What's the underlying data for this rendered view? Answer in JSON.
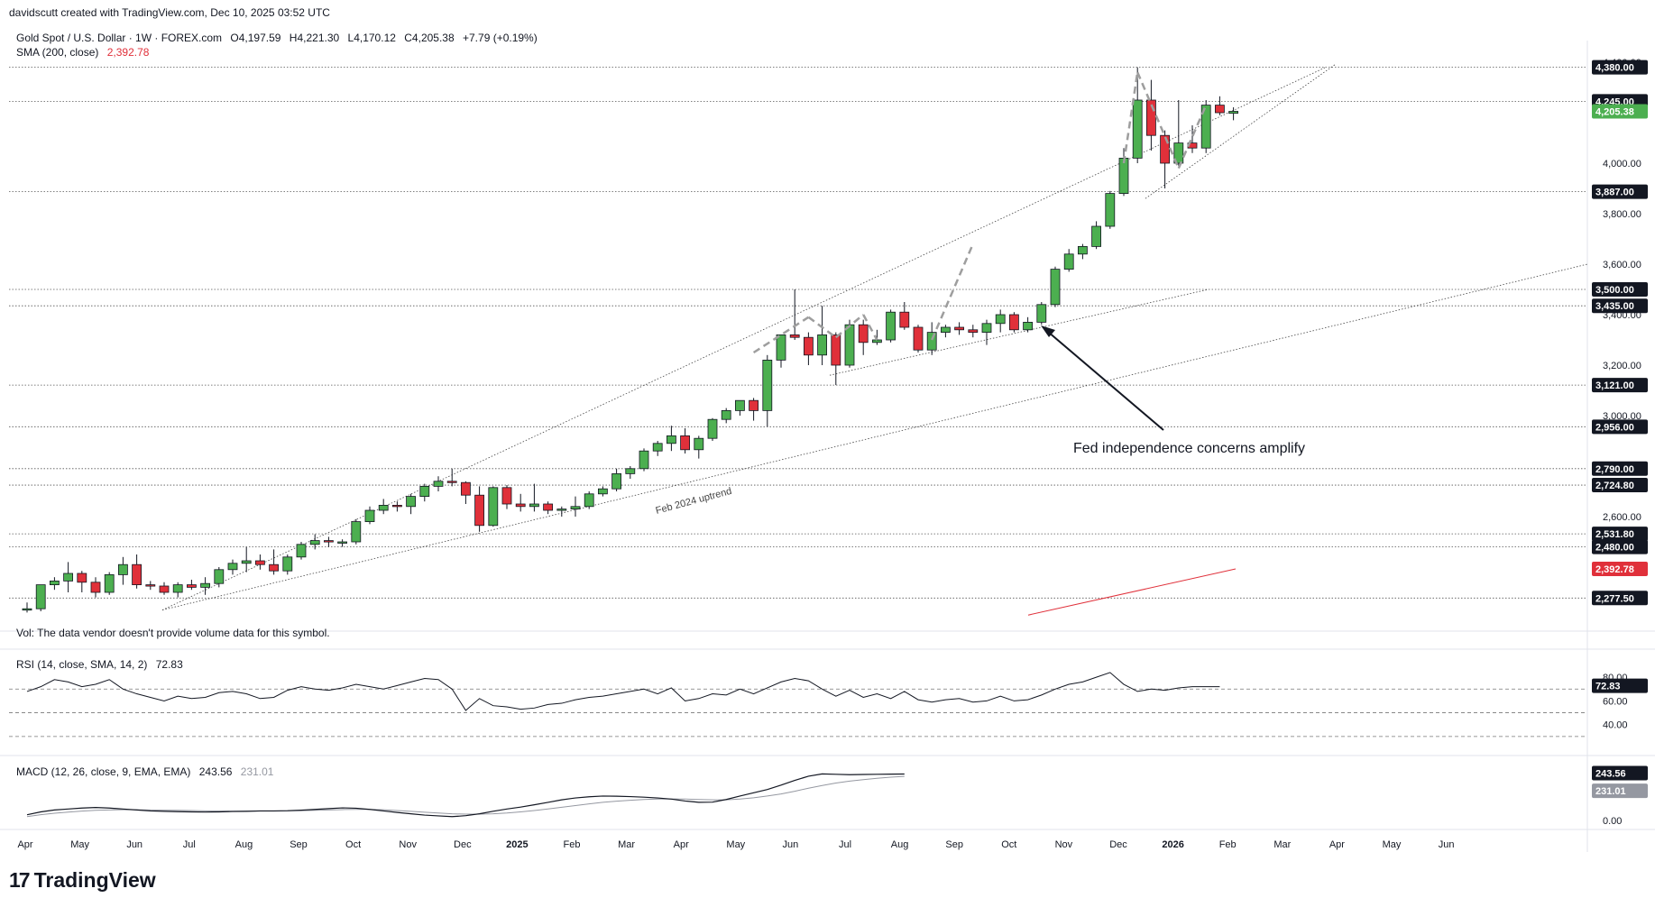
{
  "credit": "davidscutt created with TradingView.com, Dec 10, 2025 03:52 UTC",
  "symbol_line": {
    "title": "Gold Spot / U.S. Dollar · 1W · FOREX.com",
    "open": "O4,197.59",
    "high": "H4,221.30",
    "low": "L4,170.12",
    "close": "C4,205.38",
    "change": "+7.79 (+0.19%)"
  },
  "sma": {
    "label": "SMA (200, close)",
    "value": "2,392.78"
  },
  "vol_note": "Vol: The data vendor doesn't provide volume data for this symbol.",
  "rsi": {
    "label": "RSI (14, close, SMA, 14, 2)",
    "value": "72.83"
  },
  "macd": {
    "label": "MACD (12, 26, close, 9, EMA, EMA)",
    "value": "243.56",
    "signal": "231.01"
  },
  "brand": "TradingView",
  "colors": {
    "up": "#4caf50",
    "down": "#e0303a",
    "sma": "#e0303a",
    "axis_text": "#131722",
    "grid": "#9598a1"
  },
  "chart_data": {
    "type": "candlestick",
    "timeframe": "1W",
    "price_axis": {
      "range": [
        2200,
        4450
      ],
      "ticks": [
        2600,
        2800,
        3000,
        3200,
        3400,
        3600,
        3800,
        4000,
        4200,
        4400
      ],
      "tick_labels": [
        "2,600.00",
        "2,800.00",
        "3,000.00",
        "3,200.00",
        "3,400.00",
        "3,600.00",
        "3,800.00",
        "4,000.00",
        "4,200.00",
        "4,400.00"
      ]
    },
    "time_labels": [
      "Apr",
      "May",
      "Jun",
      "Jul",
      "Aug",
      "Sep",
      "Oct",
      "Nov",
      "Dec",
      "2025",
      "Feb",
      "Mar",
      "Apr",
      "May",
      "Jun",
      "Jul",
      "Aug",
      "Sep",
      "Oct",
      "Nov",
      "Dec",
      "2026",
      "Feb",
      "Mar",
      "Apr",
      "May",
      "Jun"
    ],
    "price_levels": [
      "4,380.00",
      "4,245.00",
      "3,887.00",
      "3,500.00",
      "3,435.00",
      "3,121.00",
      "2,956.00",
      "2,790.00",
      "2,724.80",
      "2,531.80",
      "2,480.00",
      "2,277.50"
    ],
    "last_price": "4,205.38",
    "candles": [
      {
        "o": 2230,
        "h": 2260,
        "l": 2220,
        "c": 2235
      },
      {
        "o": 2235,
        "h": 2330,
        "l": 2225,
        "c": 2330
      },
      {
        "o": 2330,
        "h": 2360,
        "l": 2310,
        "c": 2345
      },
      {
        "o": 2345,
        "h": 2420,
        "l": 2300,
        "c": 2375
      },
      {
        "o": 2375,
        "h": 2385,
        "l": 2300,
        "c": 2340
      },
      {
        "o": 2340,
        "h": 2360,
        "l": 2280,
        "c": 2300
      },
      {
        "o": 2300,
        "h": 2380,
        "l": 2290,
        "c": 2370
      },
      {
        "o": 2370,
        "h": 2440,
        "l": 2330,
        "c": 2410
      },
      {
        "o": 2410,
        "h": 2450,
        "l": 2315,
        "c": 2330
      },
      {
        "o": 2330,
        "h": 2345,
        "l": 2310,
        "c": 2325
      },
      {
        "o": 2325,
        "h": 2340,
        "l": 2290,
        "c": 2300
      },
      {
        "o": 2300,
        "h": 2340,
        "l": 2280,
        "c": 2330
      },
      {
        "o": 2330,
        "h": 2350,
        "l": 2310,
        "c": 2320
      },
      {
        "o": 2320,
        "h": 2360,
        "l": 2290,
        "c": 2335
      },
      {
        "o": 2335,
        "h": 2400,
        "l": 2320,
        "c": 2390
      },
      {
        "o": 2390,
        "h": 2430,
        "l": 2370,
        "c": 2415
      },
      {
        "o": 2415,
        "h": 2480,
        "l": 2380,
        "c": 2425
      },
      {
        "o": 2425,
        "h": 2450,
        "l": 2390,
        "c": 2410
      },
      {
        "o": 2410,
        "h": 2470,
        "l": 2370,
        "c": 2385
      },
      {
        "o": 2385,
        "h": 2450,
        "l": 2370,
        "c": 2440
      },
      {
        "o": 2440,
        "h": 2500,
        "l": 2430,
        "c": 2490
      },
      {
        "o": 2490,
        "h": 2530,
        "l": 2470,
        "c": 2505
      },
      {
        "o": 2505,
        "h": 2520,
        "l": 2480,
        "c": 2500
      },
      {
        "o": 2500,
        "h": 2510,
        "l": 2480,
        "c": 2500
      },
      {
        "o": 2500,
        "h": 2590,
        "l": 2490,
        "c": 2580
      },
      {
        "o": 2580,
        "h": 2640,
        "l": 2570,
        "c": 2625
      },
      {
        "o": 2625,
        "h": 2670,
        "l": 2610,
        "c": 2645
      },
      {
        "o": 2645,
        "h": 2660,
        "l": 2620,
        "c": 2640
      },
      {
        "o": 2640,
        "h": 2690,
        "l": 2610,
        "c": 2680
      },
      {
        "o": 2680,
        "h": 2730,
        "l": 2660,
        "c": 2720
      },
      {
        "o": 2720,
        "h": 2760,
        "l": 2700,
        "c": 2740
      },
      {
        "o": 2740,
        "h": 2790,
        "l": 2720,
        "c": 2735
      },
      {
        "o": 2735,
        "h": 2740,
        "l": 2650,
        "c": 2685
      },
      {
        "o": 2685,
        "h": 2720,
        "l": 2540,
        "c": 2565
      },
      {
        "o": 2565,
        "h": 2720,
        "l": 2560,
        "c": 2715
      },
      {
        "o": 2715,
        "h": 2725,
        "l": 2630,
        "c": 2650
      },
      {
        "o": 2650,
        "h": 2690,
        "l": 2620,
        "c": 2640
      },
      {
        "o": 2640,
        "h": 2730,
        "l": 2620,
        "c": 2650
      },
      {
        "o": 2650,
        "h": 2660,
        "l": 2610,
        "c": 2625
      },
      {
        "o": 2625,
        "h": 2640,
        "l": 2600,
        "c": 2630
      },
      {
        "o": 2630,
        "h": 2680,
        "l": 2600,
        "c": 2640
      },
      {
        "o": 2640,
        "h": 2700,
        "l": 2630,
        "c": 2690
      },
      {
        "o": 2690,
        "h": 2720,
        "l": 2680,
        "c": 2710
      },
      {
        "o": 2710,
        "h": 2790,
        "l": 2700,
        "c": 2770
      },
      {
        "o": 2770,
        "h": 2800,
        "l": 2750,
        "c": 2790
      },
      {
        "o": 2790,
        "h": 2870,
        "l": 2780,
        "c": 2860
      },
      {
        "o": 2860,
        "h": 2900,
        "l": 2840,
        "c": 2890
      },
      {
        "o": 2890,
        "h": 2960,
        "l": 2860,
        "c": 2920
      },
      {
        "o": 2920,
        "h": 2950,
        "l": 2850,
        "c": 2865
      },
      {
        "o": 2865,
        "h": 2920,
        "l": 2830,
        "c": 2910
      },
      {
        "o": 2910,
        "h": 2990,
        "l": 2900,
        "c": 2985
      },
      {
        "o": 2985,
        "h": 3030,
        "l": 2970,
        "c": 3020
      },
      {
        "o": 3020,
        "h": 3060,
        "l": 3000,
        "c": 3060
      },
      {
        "o": 3060,
        "h": 3070,
        "l": 2980,
        "c": 3020
      },
      {
        "o": 3020,
        "h": 3240,
        "l": 2956,
        "c": 3220
      },
      {
        "o": 3220,
        "h": 3320,
        "l": 3190,
        "c": 3320
      },
      {
        "o": 3320,
        "h": 3500,
        "l": 3300,
        "c": 3310
      },
      {
        "o": 3310,
        "h": 3330,
        "l": 3200,
        "c": 3240
      },
      {
        "o": 3240,
        "h": 3435,
        "l": 3200,
        "c": 3320
      },
      {
        "o": 3320,
        "h": 3330,
        "l": 3121,
        "c": 3200
      },
      {
        "o": 3200,
        "h": 3380,
        "l": 3190,
        "c": 3360
      },
      {
        "o": 3360,
        "h": 3380,
        "l": 3240,
        "c": 3290
      },
      {
        "o": 3290,
        "h": 3340,
        "l": 3280,
        "c": 3300
      },
      {
        "o": 3300,
        "h": 3420,
        "l": 3290,
        "c": 3410
      },
      {
        "o": 3410,
        "h": 3450,
        "l": 3340,
        "c": 3350
      },
      {
        "o": 3350,
        "h": 3360,
        "l": 3250,
        "c": 3260
      },
      {
        "o": 3260,
        "h": 3370,
        "l": 3240,
        "c": 3330
      },
      {
        "o": 3330,
        "h": 3360,
        "l": 3310,
        "c": 3350
      },
      {
        "o": 3350,
        "h": 3370,
        "l": 3320,
        "c": 3340
      },
      {
        "o": 3340,
        "h": 3360,
        "l": 3310,
        "c": 3330
      },
      {
        "o": 3330,
        "h": 3380,
        "l": 3280,
        "c": 3365
      },
      {
        "o": 3365,
        "h": 3420,
        "l": 3330,
        "c": 3400
      },
      {
        "o": 3400,
        "h": 3410,
        "l": 3330,
        "c": 3340
      },
      {
        "o": 3340,
        "h": 3390,
        "l": 3330,
        "c": 3370
      },
      {
        "o": 3370,
        "h": 3450,
        "l": 3360,
        "c": 3440
      },
      {
        "o": 3440,
        "h": 3590,
        "l": 3430,
        "c": 3580
      },
      {
        "o": 3580,
        "h": 3660,
        "l": 3570,
        "c": 3640
      },
      {
        "o": 3640,
        "h": 3680,
        "l": 3620,
        "c": 3670
      },
      {
        "o": 3670,
        "h": 3770,
        "l": 3660,
        "c": 3750
      },
      {
        "o": 3750,
        "h": 3890,
        "l": 3740,
        "c": 3880
      },
      {
        "o": 3880,
        "h": 4060,
        "l": 3870,
        "c": 4020
      },
      {
        "o": 4020,
        "h": 4380,
        "l": 4000,
        "c": 4250
      },
      {
        "o": 4250,
        "h": 4330,
        "l": 4050,
        "c": 4110
      },
      {
        "o": 4110,
        "h": 4130,
        "l": 3900,
        "c": 4000
      },
      {
        "o": 4000,
        "h": 4250,
        "l": 3990,
        "c": 4080
      },
      {
        "o": 4080,
        "h": 4150,
        "l": 4040,
        "c": 4060
      },
      {
        "o": 4060,
        "h": 4250,
        "l": 4040,
        "c": 4230
      },
      {
        "o": 4230,
        "h": 4265,
        "l": 4190,
        "c": 4200
      },
      {
        "o": 4197.59,
        "h": 4221.3,
        "l": 4170.12,
        "c": 4205.38
      }
    ],
    "sma_200": [
      [
        2392.78
      ]
    ],
    "annotations": [
      "Fed independence concerns amplify",
      "Feb 2024 uptrend"
    ],
    "rsi": {
      "range": [
        20,
        90
      ],
      "ticks": [
        "40.00",
        "60.00",
        "80.00"
      ],
      "levels": [
        70,
        50,
        30
      ],
      "values": [
        68,
        72,
        78,
        76,
        72,
        74,
        78,
        70,
        66,
        63,
        60,
        64,
        62,
        63,
        67,
        68,
        66,
        62,
        63,
        69,
        72,
        70,
        69,
        71,
        74,
        72,
        70,
        73,
        76,
        79,
        78,
        70,
        52,
        62,
        56,
        55,
        53,
        54,
        57,
        58,
        61,
        63,
        64,
        66,
        68,
        70,
        66,
        71,
        60,
        62,
        66,
        65,
        70,
        66,
        71,
        76,
        79,
        77,
        70,
        64,
        69,
        63,
        66,
        62,
        68,
        61,
        59,
        61,
        62,
        59,
        60,
        64,
        60,
        61,
        65,
        70,
        74,
        76,
        80,
        84,
        74,
        68,
        70,
        69,
        71,
        72,
        72,
        72
      ]
    },
    "macd": {
      "ticks": [
        "0.00"
      ],
      "values": [
        30,
        45,
        55,
        60,
        65,
        68,
        65,
        60,
        55,
        50,
        48,
        46,
        45,
        44,
        45,
        47,
        48,
        50,
        50,
        51,
        54,
        58,
        62,
        66,
        64,
        58,
        50,
        42,
        35,
        28,
        24,
        20,
        25,
        35,
        48,
        60,
        70,
        82,
        95,
        108,
        118,
        124,
        128,
        127,
        125,
        122,
        118,
        112,
        102,
        95,
        96,
        110,
        128,
        145,
        162,
        185,
        210,
        232,
        244,
        242,
        240,
        241,
        242,
        243,
        243.56
      ],
      "signal": [
        20,
        30,
        38,
        44,
        49,
        53,
        55,
        56,
        56,
        55,
        54,
        53,
        52,
        50,
        49,
        49,
        49,
        49,
        49,
        50,
        51,
        53,
        55,
        57,
        58,
        58,
        56,
        52,
        48,
        43,
        39,
        35,
        33,
        33,
        35,
        39,
        45,
        52,
        60,
        69,
        78,
        87,
        95,
        101,
        106,
        110,
        112,
        113,
        112,
        110,
        108,
        108,
        112,
        119,
        128,
        139,
        153,
        169,
        183,
        196,
        206,
        214,
        221,
        227,
        231.01
      ]
    }
  }
}
